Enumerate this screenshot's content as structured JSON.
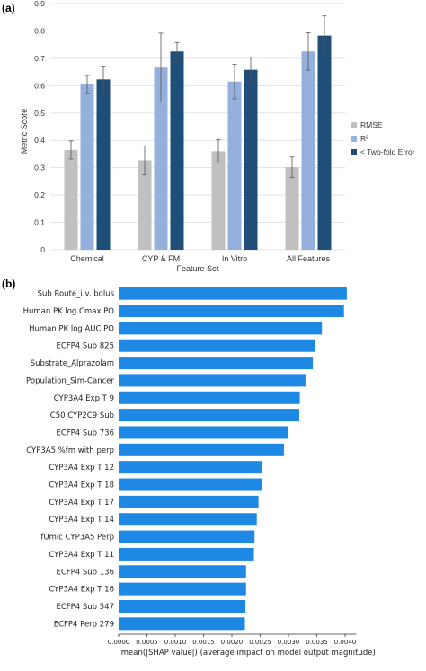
{
  "panels": {
    "a": "(a)",
    "b": "(b)"
  },
  "chart_data": [
    {
      "type": "bar",
      "xlabel": "Feature Set",
      "ylabel": "Metric Score",
      "ylim": [
        0,
        0.9
      ],
      "yticks": [
        "0",
        "0.1",
        "0.2",
        "0.3",
        "0.4",
        "0.5",
        "0.6",
        "0.7",
        "0.8",
        "0.9"
      ],
      "grid": true,
      "legend_position": "right",
      "categories": [
        "Chemical",
        "CYP & FM",
        "In Vitro",
        "All Features"
      ],
      "series": [
        {
          "name": "RMSE",
          "color": "#c0c0c0",
          "values": [
            0.365,
            0.327,
            0.36,
            0.302
          ],
          "errors": [
            0.033,
            0.053,
            0.043,
            0.037
          ]
        },
        {
          "name": "R²",
          "color": "#95b0dd",
          "values": [
            0.604,
            0.666,
            0.615,
            0.725
          ],
          "errors": [
            0.033,
            0.126,
            0.063,
            0.068
          ]
        },
        {
          "name": "< Two-fold Error",
          "color": "#1f4e79",
          "values": [
            0.623,
            0.725,
            0.658,
            0.783
          ],
          "errors": [
            0.046,
            0.033,
            0.047,
            0.072
          ]
        }
      ]
    },
    {
      "type": "bar",
      "orientation": "horizontal",
      "xlabel": "mean(|SHAP value|) (average impact on model output magnitude)",
      "xlim": [
        0,
        0.0042
      ],
      "xticks": [
        "0.0000",
        "0.0005",
        "0.0010",
        "0.0015",
        "0.0020",
        "0.0025",
        "0.0030",
        "0.0035",
        "0.0040"
      ],
      "color": "#1e88e5",
      "categories": [
        "Sub Route_i.v. bolus",
        "Human PK log Cmax PO",
        "Human PK log AUC PO",
        "ECFP4 Sub 825",
        "Substrate_Alprazolam",
        "Population_Sim-Cancer",
        "CYP3A4 Exp T 9",
        "IC50 CYP2C9 Sub",
        "ECFP4 Sub 736",
        "CYP3A5 %fm with perp",
        "CYP3A4 Exp T 12",
        "CYP3A4 Exp T 18",
        "CYP3A4 Exp T 17",
        "CYP3A4 Exp T 14",
        "fUmic CYP3A5 Perp",
        "CYP3A4 Exp T 11",
        "ECFP4 Sub 136",
        "CYP3A4 Exp T 16",
        "ECFP4 Sub 547",
        "ECFP4 Perp 279"
      ],
      "values": [
        0.00403,
        0.00398,
        0.00359,
        0.00347,
        0.00343,
        0.0033,
        0.0032,
        0.00319,
        0.00299,
        0.00292,
        0.00254,
        0.00253,
        0.00247,
        0.00244,
        0.0024,
        0.00239,
        0.00225,
        0.00225,
        0.00224,
        0.00223
      ]
    }
  ]
}
